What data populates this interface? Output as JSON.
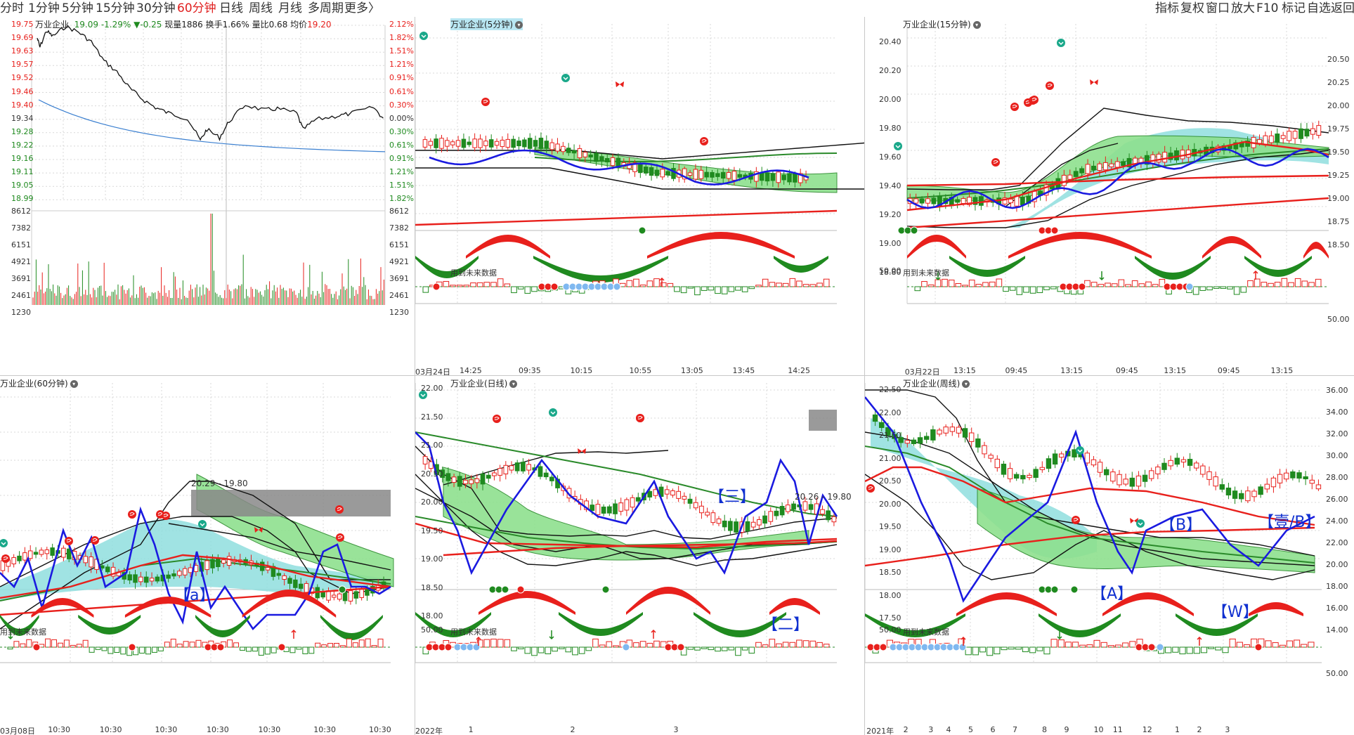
{
  "period_tabs": [
    "分时",
    "1分钟",
    "5分钟",
    "15分钟",
    "30分钟",
    "60分钟",
    "日线",
    "周线",
    "月线",
    "多周期",
    "更多〉"
  ],
  "active_tab": "60分钟",
  "right_tools": [
    "指标",
    "复权",
    "窗口",
    "放大",
    "F10",
    "标记",
    "自选",
    "返回"
  ],
  "colors": {
    "up": "#e8201c",
    "down": "#1f8a1f",
    "blue": "#1a1ae0",
    "cyan": "#8fdede",
    "green_fill": "#8ee08e"
  },
  "intraday": {
    "stock_name": "万业企业",
    "last": "19.09",
    "change_pct": "-1.29%",
    "change": "▼-0.25",
    "volume_label": "现量",
    "volume": "1886",
    "turnover_label": "换手",
    "turnover": "1.66%",
    "vol_ratio_label": "量比",
    "vol_ratio": "0.68",
    "avg_label": "均价",
    "avg": "19.20",
    "price_ticks": [
      "19.75",
      "19.69",
      "19.63",
      "19.57",
      "19.52",
      "19.46",
      "19.40",
      "19.34",
      "19.28",
      "19.22",
      "19.16",
      "19.11",
      "19.05",
      "18.99"
    ],
    "pct_ticks": [
      "2.12%",
      "1.82%",
      "1.51%",
      "1.21%",
      "0.91%",
      "0.61%",
      "0.30%",
      "0.00%",
      "0.30%",
      "0.61%",
      "0.91%",
      "1.21%",
      "1.51%",
      "1.82%"
    ],
    "vol_ticks": [
      "8612",
      "7382",
      "6151",
      "4921",
      "3691",
      "2461",
      "1230"
    ]
  },
  "future_data_label": "用到未来数据",
  "p5": {
    "title": "万业企业(5分钟)",
    "x_ticks": [
      "03月24日",
      "14:25",
      "09:35",
      "10:15",
      "10:55",
      "13:05",
      "13:45",
      "14:25"
    ]
  },
  "p15": {
    "title": "万业企业(15分钟)",
    "y_ticks": [
      "20.40",
      "20.20",
      "20.00",
      "19.80",
      "19.60",
      "19.40",
      "19.20",
      "19.00",
      "18.80"
    ],
    "osc_tick": "50.00",
    "x_ticks": [
      "03月22日",
      "13:15",
      "09:45",
      "13:15",
      "09:45",
      "13:15",
      "09:45",
      "13:15"
    ],
    "right_ticks": [
      "20.50",
      "20.25",
      "20.00",
      "19.75",
      "19.50",
      "19.25",
      "19.00",
      "18.75",
      "18.50"
    ],
    "right_osc": "50.00"
  },
  "p60": {
    "title": "万业企业(60分钟)",
    "range": "20.29 - 19.80",
    "wave_label": "【a】",
    "x_ticks": [
      "03月08日",
      "10:30",
      "10:30",
      "10:30",
      "10:30",
      "10:30",
      "10:30",
      "10:30"
    ]
  },
  "pday": {
    "title": "万业企业(日线)",
    "y_ticks": [
      "22.00",
      "21.50",
      "21.00",
      "20.50",
      "20.00",
      "19.50",
      "19.00",
      "18.50",
      "18.00"
    ],
    "osc_tick": "50.00",
    "range": "20.26 - 19.80",
    "wave_top": "【三】",
    "wave_bottom": "【二】",
    "x_ticks": [
      "2022年",
      "1",
      "2",
      "3"
    ]
  },
  "pweek": {
    "title": "万业企业(周线)",
    "y_ticks": [
      "22.50",
      "22.00",
      "21.50",
      "21.00",
      "20.50",
      "20.00",
      "19.50",
      "19.00",
      "18.50",
      "18.00",
      "17.50"
    ],
    "osc_tick": "50.00",
    "labels": {
      "B": "【B】",
      "A": "【A】",
      "W": "【W】",
      "top": "【壹/B】"
    },
    "x_ticks": [
      "2021年",
      "2",
      "3",
      "4",
      "5",
      "6",
      "7",
      "8",
      "9",
      "10",
      "11",
      "12",
      "1",
      "2",
      "3"
    ],
    "right_ticks": [
      "36.00",
      "34.00",
      "32.00",
      "30.00",
      "28.00",
      "26.00",
      "24.00",
      "22.00",
      "20.00",
      "18.00",
      "16.00",
      "14.00"
    ],
    "right_osc": "50.00"
  }
}
